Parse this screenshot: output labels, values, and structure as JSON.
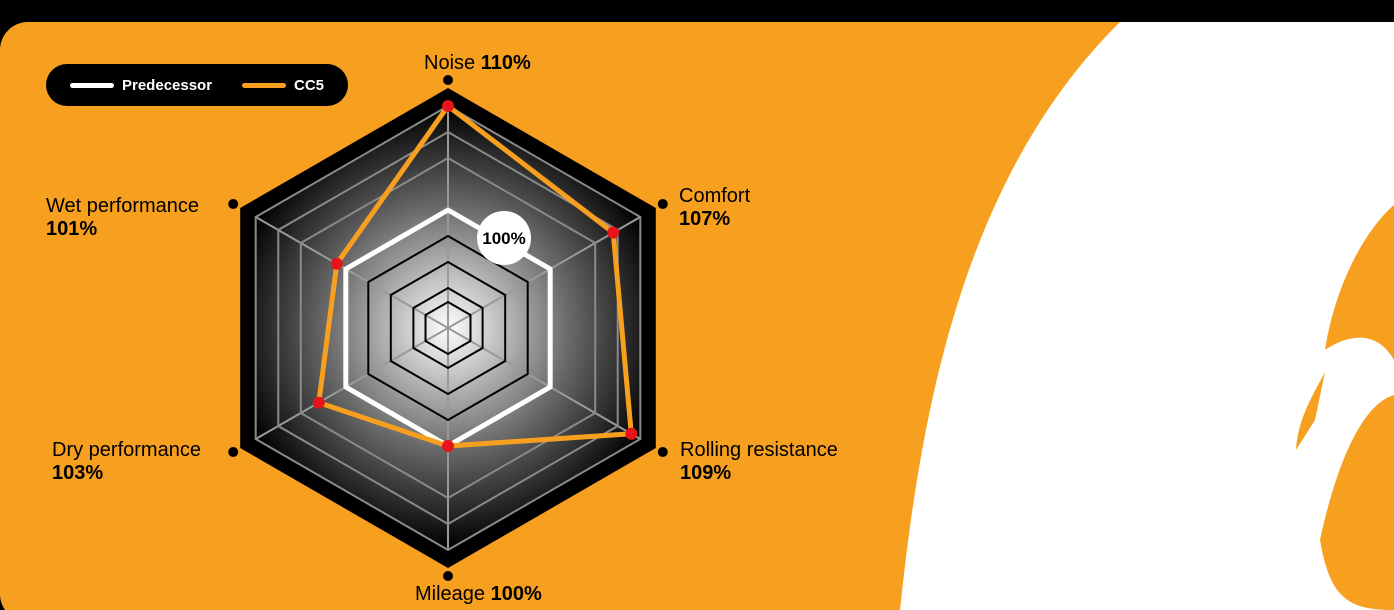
{
  "chart_data": {
    "type": "radar",
    "legend": {
      "position": "top-left",
      "entries": [
        {
          "name": "Predecessor",
          "color": "#ffffff"
        },
        {
          "name": "CC5",
          "color": "#f7a020"
        }
      ]
    },
    "axes": [
      "Noise",
      "Comfort",
      "Rolling resistance",
      "Mileage",
      "Dry performance",
      "Wet performance"
    ],
    "value_labels": [
      "110%",
      "107%",
      "109%",
      "100%",
      "103%",
      "101%"
    ],
    "series": [
      {
        "name": "Predecessor",
        "values": [
          100,
          100,
          100,
          100,
          100,
          100
        ]
      },
      {
        "name": "CC5",
        "values": [
          110,
          107,
          109,
          100,
          103,
          101
        ]
      }
    ],
    "reference_label": "100%",
    "rings": [
      60,
      70,
      80,
      90,
      100,
      110
    ],
    "range": [
      90,
      110
    ],
    "colors": {
      "background": "#f7a020",
      "predecessor": "#ffffff",
      "cc5": "#f7a020",
      "marker": "#e8141b",
      "frame": "#000000"
    }
  }
}
